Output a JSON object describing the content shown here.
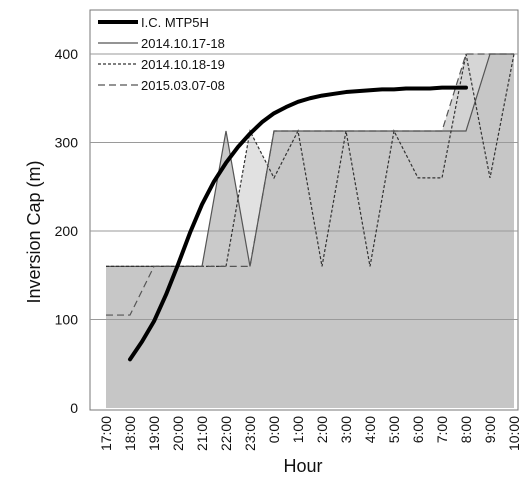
{
  "chart_data": {
    "type": "area",
    "xlabel": "Hour",
    "ylabel": "Inversion Cap (m)",
    "categories": [
      "17:00",
      "18:00",
      "19:00",
      "20:00",
      "21:00",
      "22:00",
      "23:00",
      "0:00",
      "1:00",
      "2:00",
      "3:00",
      "4:00",
      "5:00",
      "6:00",
      "7:00",
      "8:00",
      "9:00",
      "10:00"
    ],
    "ylim": [
      0,
      400
    ],
    "yticks": [
      0,
      100,
      200,
      300,
      400
    ],
    "grid": true,
    "legend_position": "top-left",
    "series": [
      {
        "name": "I.C. MTP5H",
        "style": "thick-solid",
        "color": "#000000",
        "x": [
          1,
          1.5,
          2,
          2.5,
          3,
          3.5,
          4,
          4.5,
          5,
          5.5,
          6,
          6.5,
          7,
          7.5,
          8,
          8.5,
          9,
          9.5,
          10,
          10.5,
          11,
          11.5,
          12,
          12.5,
          13,
          13.5,
          14,
          14.5,
          15
        ],
        "values": [
          55,
          75,
          98,
          128,
          162,
          198,
          230,
          256,
          277,
          295,
          310,
          323,
          333,
          340,
          346,
          350,
          353,
          355,
          357,
          358,
          359,
          360,
          360,
          361,
          361,
          361,
          362,
          362,
          362
        ]
      },
      {
        "name": "2014.10.17-18",
        "style": "solid",
        "color": "#555555",
        "fill": "#c4c4c4",
        "values": [
          160,
          160,
          160,
          160,
          160,
          313,
          160,
          313,
          313,
          313,
          313,
          313,
          313,
          313,
          313,
          313,
          400,
          400
        ]
      },
      {
        "name": "2014.10.18-19",
        "style": "dotted",
        "color": "#333333",
        "fill": "#dedede",
        "values": [
          160,
          160,
          160,
          160,
          160,
          160,
          313,
          260,
          313,
          160,
          313,
          160,
          313,
          260,
          260,
          400,
          260,
          400
        ]
      },
      {
        "name": "2015.03.07-08",
        "style": "dashed",
        "color": "#555555",
        "fill": "#d2d2d2",
        "values": [
          105,
          105,
          160,
          160,
          160,
          160,
          160,
          313,
          313,
          313,
          313,
          313,
          313,
          313,
          313,
          400,
          400,
          400
        ]
      }
    ]
  }
}
